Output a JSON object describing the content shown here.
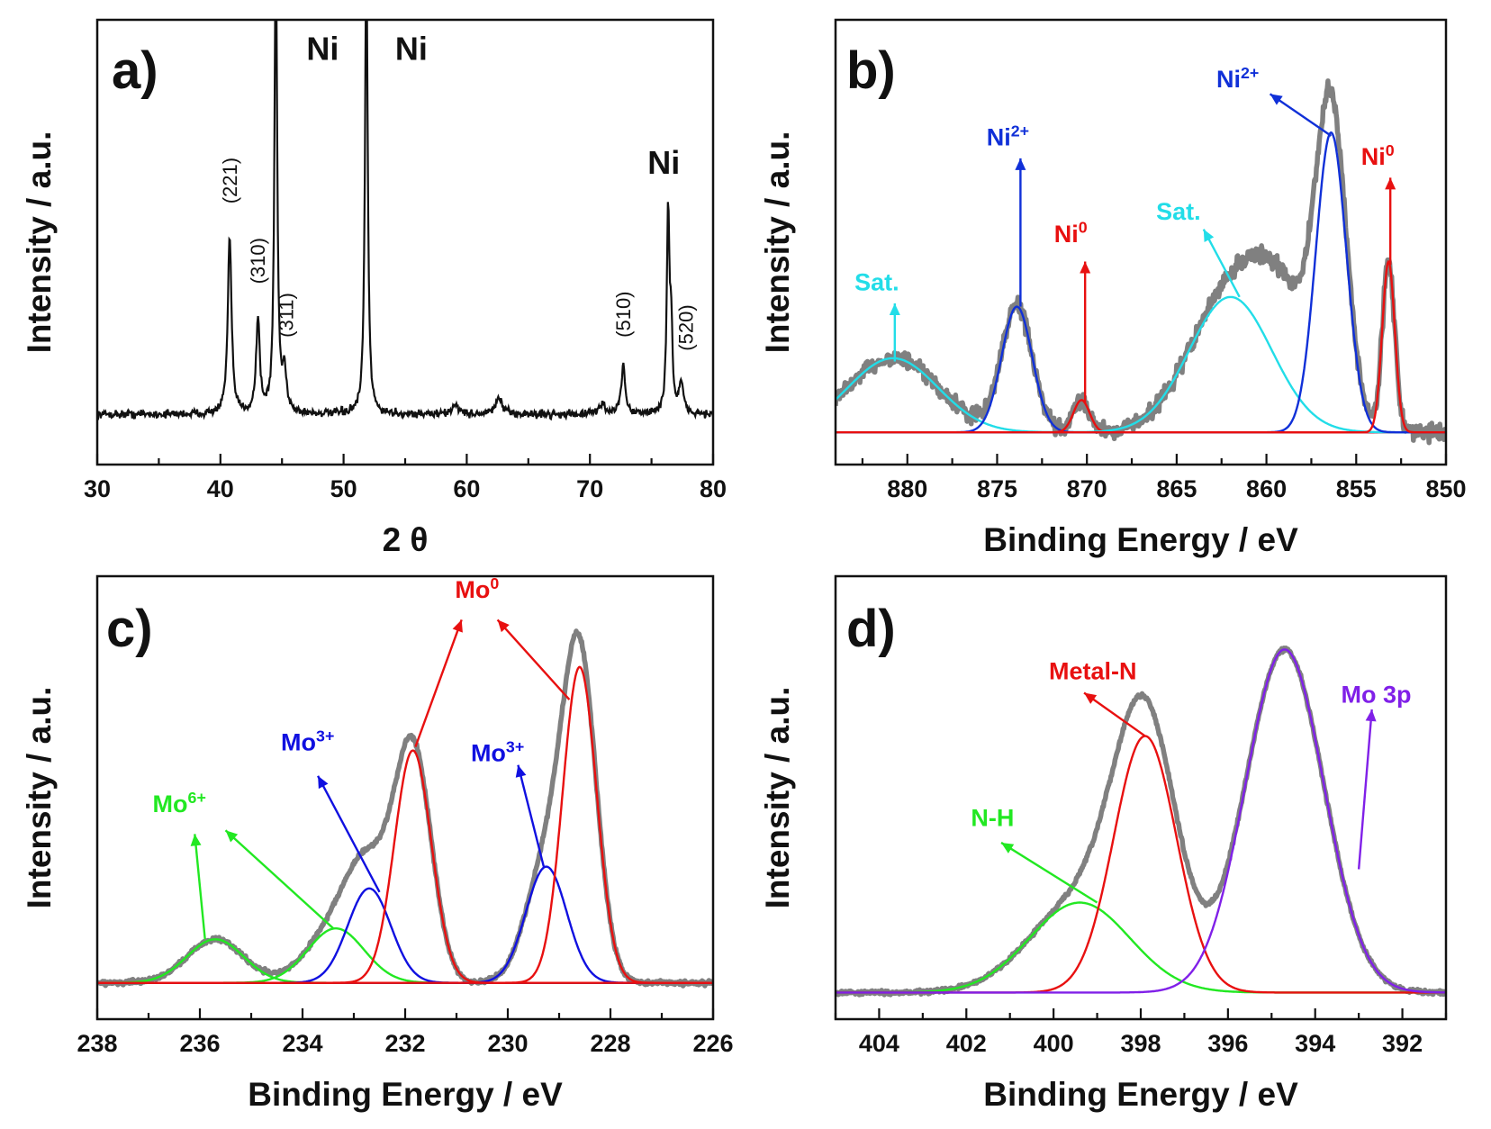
{
  "chart_data": [
    {
      "panel_label": "a)",
      "type": "line",
      "xlabel": "2 θ",
      "ylabel": "Intensity / a.u.",
      "xlim": [
        30,
        80
      ],
      "x_ticks": [
        30,
        40,
        50,
        60,
        70,
        80
      ],
      "x_reversed": false,
      "y_tick_labels": false,
      "baseline": 0.1,
      "noise": 0.012,
      "peaks": [
        {
          "x": 40.75,
          "height": 0.53,
          "width": 0.18
        },
        {
          "x": 43.05,
          "height": 0.28,
          "width": 0.18
        },
        {
          "x": 44.5,
          "height": 1.4,
          "width": 0.13
        },
        {
          "x": 45.2,
          "height": 0.12,
          "width": 0.2
        },
        {
          "x": 51.85,
          "height": 1.4,
          "width": 0.13
        },
        {
          "x": 59.1,
          "height": 0.03,
          "width": 0.3
        },
        {
          "x": 62.6,
          "height": 0.05,
          "width": 0.3
        },
        {
          "x": 71.0,
          "height": 0.03,
          "width": 0.3
        },
        {
          "x": 72.7,
          "height": 0.14,
          "width": 0.2
        },
        {
          "x": 76.35,
          "height": 0.6,
          "width": 0.13
        },
        {
          "x": 76.6,
          "height": 0.23,
          "width": 0.12
        },
        {
          "x": 77.4,
          "height": 0.09,
          "width": 0.2
        }
      ],
      "annotations": [
        {
          "text": "(221)",
          "x": 40.75,
          "y": 0.73,
          "vertical": true,
          "color": "#111111",
          "size": 22
        },
        {
          "text": "(310)",
          "x": 43.05,
          "y": 0.49,
          "vertical": true,
          "color": "#111111",
          "size": 22
        },
        {
          "text": "(311)",
          "x": 45.35,
          "y": 0.33,
          "vertical": true,
          "color": "#111111",
          "size": 22
        },
        {
          "text": "(510)",
          "x": 72.7,
          "y": 0.33,
          "vertical": true,
          "color": "#111111",
          "size": 22
        },
        {
          "text": "(520)",
          "x": 77.8,
          "y": 0.29,
          "vertical": true,
          "color": "#111111",
          "size": 22
        },
        {
          "text": "Ni",
          "x": 48.3,
          "y": 1.16,
          "color": "#111111",
          "size": 36
        },
        {
          "text": "Ni",
          "x": 55.5,
          "y": 1.16,
          "color": "#111111",
          "size": 36
        },
        {
          "text": "Ni",
          "x": 76.0,
          "y": 0.82,
          "color": "#111111",
          "size": 36
        }
      ]
    },
    {
      "panel_label": "b)",
      "type": "line",
      "xlabel": "Binding Energy / eV",
      "ylabel": "Intensity / a.u.",
      "xlim": [
        884,
        850
      ],
      "x_ticks": [
        880,
        875,
        870,
        865,
        860,
        855,
        850
      ],
      "x_reversed": true,
      "y_tick_labels": false,
      "series": [
        {
          "label": "Sat.",
          "color": "#22dde8",
          "center": 880.8,
          "height": 0.23,
          "sigma": 2.5
        },
        {
          "label": "Ni2+",
          "color": "#1030d8",
          "center": 873.9,
          "height": 0.39,
          "sigma": 0.85
        },
        {
          "label": "Ni0",
          "color": "#e81010",
          "center": 870.3,
          "height": 0.1,
          "sigma": 0.45
        },
        {
          "label": "Sat.",
          "color": "#22dde8",
          "center": 862.0,
          "height": 0.42,
          "sigma": 2.3
        },
        {
          "label": "Ni2+",
          "color": "#1030d8",
          "center": 856.4,
          "height": 0.93,
          "sigma": 0.85
        },
        {
          "label": "Ni0",
          "color": "#e81010",
          "center": 853.2,
          "height": 0.53,
          "sigma": 0.35
        }
      ],
      "envelope": {
        "color": "#808080",
        "noise": 0.025,
        "extra": [
          {
            "center": 859.0,
            "height": 0.3,
            "sigma": 1.8
          }
        ]
      },
      "arrows": [
        {
          "from": [
            880.7,
            0.22
          ],
          "to": [
            880.7,
            0.4
          ],
          "color": "#22dde8"
        },
        {
          "from": [
            873.7,
            0.39
          ],
          "to": [
            873.7,
            0.85
          ],
          "color": "#1030d8"
        },
        {
          "from": [
            870.1,
            0.09
          ],
          "to": [
            870.1,
            0.53
          ],
          "color": "#e81010"
        },
        {
          "from": [
            861.5,
            0.42
          ],
          "to": [
            863.5,
            0.63
          ],
          "color": "#22dde8"
        },
        {
          "from": [
            856.4,
            0.92
          ],
          "to": [
            859.8,
            1.05
          ],
          "color": "#1030d8"
        },
        {
          "from": [
            853.1,
            0.52
          ],
          "to": [
            853.1,
            0.79
          ],
          "color": "#e81010"
        }
      ],
      "annotations": [
        {
          "text": "Sat.",
          "x": 881.7,
          "y": 0.44,
          "color": "#22dde8",
          "size": 27
        },
        {
          "text": "Ni",
          "sup": "2+",
          "x": 874.4,
          "y": 0.89,
          "color": "#1030d8",
          "size": 27
        },
        {
          "text": "Ni",
          "sup": "0",
          "x": 870.9,
          "y": 0.59,
          "color": "#e81010",
          "size": 27
        },
        {
          "text": "Sat.",
          "x": 864.9,
          "y": 0.66,
          "color": "#22dde8",
          "size": 27
        },
        {
          "text": "Ni",
          "sup": "2+",
          "x": 861.6,
          "y": 1.07,
          "color": "#1030d8",
          "size": 27
        },
        {
          "text": "Ni",
          "sup": "0",
          "x": 853.8,
          "y": 0.83,
          "color": "#e81010",
          "size": 27
        }
      ]
    },
    {
      "panel_label": "c)",
      "type": "line",
      "xlabel": "Binding Energy / eV",
      "ylabel": "Intensity / a.u.",
      "xlim": [
        238,
        226
      ],
      "x_ticks": [
        238,
        236,
        234,
        232,
        230,
        228,
        226
      ],
      "x_reversed": true,
      "y_tick_labels": false,
      "series": [
        {
          "label": "Mo6+",
          "color": "#22e822",
          "center": 235.7,
          "height": 0.12,
          "sigma": 0.55
        },
        {
          "label": "Mo6+",
          "color": "#22e822",
          "center": 233.35,
          "height": 0.15,
          "sigma": 0.55
        },
        {
          "label": "Mo3+",
          "color": "#1010e0",
          "center": 232.7,
          "height": 0.26,
          "sigma": 0.42
        },
        {
          "label": "Mo3+",
          "color": "#1010e0",
          "center": 229.25,
          "height": 0.32,
          "sigma": 0.4
        },
        {
          "label": "Mo0",
          "color": "#e81010",
          "center": 231.85,
          "height": 0.64,
          "sigma": 0.36
        },
        {
          "label": "Mo0",
          "color": "#e81010",
          "center": 228.6,
          "height": 0.87,
          "sigma": 0.33
        }
      ],
      "envelope": {
        "color": "#808080",
        "noise": 0.006,
        "extra": []
      },
      "arrows": [
        {
          "from": [
            235.9,
            0.12
          ],
          "to": [
            236.1,
            0.41
          ],
          "color": "#22e822"
        },
        {
          "from": [
            233.4,
            0.15
          ],
          "to": [
            235.5,
            0.42
          ],
          "color": "#22e822"
        },
        {
          "from": [
            232.5,
            0.25
          ],
          "to": [
            233.7,
            0.57
          ],
          "color": "#1010e0"
        },
        {
          "from": [
            229.3,
            0.32
          ],
          "to": [
            229.8,
            0.6
          ],
          "color": "#1010e0"
        },
        {
          "from": [
            231.8,
            0.65
          ],
          "to": [
            230.9,
            1.0
          ],
          "color": "#e81010"
        },
        {
          "from": [
            228.8,
            0.78
          ],
          "to": [
            230.2,
            1.0
          ],
          "color": "#e81010"
        }
      ],
      "annotations": [
        {
          "text": "Mo",
          "sup": "6+",
          "x": 236.4,
          "y": 0.47,
          "color": "#22e822",
          "size": 27
        },
        {
          "text": "Mo",
          "sup": "3+",
          "x": 233.9,
          "y": 0.64,
          "color": "#1010e0",
          "size": 27
        },
        {
          "text": "Mo",
          "sup": "3+",
          "x": 230.2,
          "y": 0.61,
          "color": "#1010e0",
          "size": 27
        },
        {
          "text": "Mo",
          "sup": "0",
          "x": 230.6,
          "y": 1.06,
          "color": "#e81010",
          "size": 27
        }
      ]
    },
    {
      "panel_label": "d)",
      "type": "line",
      "xlabel": "Binding Energy / eV",
      "ylabel": "Intensity / a.u.",
      "xlim": [
        405,
        391
      ],
      "x_ticks": [
        404,
        402,
        400,
        398,
        396,
        394,
        392
      ],
      "x_reversed": true,
      "y_tick_labels": false,
      "series": [
        {
          "label": "N-H",
          "color": "#22e822",
          "center": 399.4,
          "height": 0.27,
          "sigma": 1.15
        },
        {
          "label": "Metal-N",
          "color": "#e81010",
          "center": 397.9,
          "height": 0.77,
          "sigma": 0.72
        },
        {
          "label": "Mo 3p",
          "color": "#8020e8",
          "center": 394.7,
          "height": 1.03,
          "sigma": 0.9
        }
      ],
      "envelope": {
        "color": "#808080",
        "noise": 0.006,
        "extra": []
      },
      "arrows": [
        {
          "from": [
            399.0,
            0.27
          ],
          "to": [
            401.2,
            0.45
          ],
          "color": "#22e822"
        },
        {
          "from": [
            397.9,
            0.77
          ],
          "to": [
            399.3,
            0.9
          ],
          "color": "#e81010"
        },
        {
          "from": [
            393.0,
            0.37
          ],
          "to": [
            392.7,
            0.85
          ],
          "color": "#8020e8"
        }
      ],
      "annotations": [
        {
          "text": "N-H",
          "x": 401.4,
          "y": 0.5,
          "color": "#22e822",
          "size": 27
        },
        {
          "text": "Metal-N",
          "x": 399.1,
          "y": 0.94,
          "color": "#e81010",
          "size": 27
        },
        {
          "text": "Mo 3p",
          "x": 392.6,
          "y": 0.87,
          "color": "#8020e8",
          "size": 27
        }
      ]
    }
  ]
}
